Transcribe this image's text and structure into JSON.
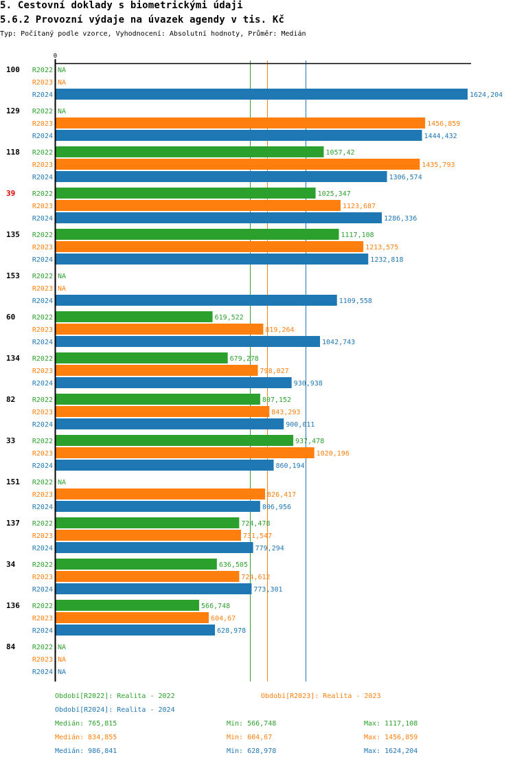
{
  "header": {
    "title": "5. Cestovní doklady s biometrickými údaji",
    "subtitle_title": "5.6.2 Provozní výdaje na úvazek agendy v tis. Kč",
    "meta": "Typ: Počítaný podle vzorce, Vyhodnocení: Absolutní hodnoty, Průměr: Medián"
  },
  "colors": {
    "R2022": "#2ca02c",
    "R2023": "#ff7f0e",
    "R2024": "#1f77b4",
    "highlight": "#dd0000",
    "axis": "#000000"
  },
  "chart_data": {
    "type": "bar",
    "orientation": "horizontal",
    "title": "5.6.2 Provozní výdaje na úvazek agendy v tis. Kč",
    "xlabel": "",
    "ylabel": "",
    "x_tick_labels": [
      "0"
    ],
    "xlim": [
      0,
      1624.204
    ],
    "na_label": "NA",
    "series_names": [
      "R2022",
      "R2023",
      "R2024"
    ],
    "categories": [
      {
        "label": "100",
        "highlight": false,
        "values": {
          "R2022": null,
          "R2023": null,
          "R2024": 1624.204
        },
        "labels": {
          "R2022": "NA",
          "R2023": "NA",
          "R2024": "1624,204"
        }
      },
      {
        "label": "129",
        "highlight": false,
        "values": {
          "R2022": null,
          "R2023": 1456.859,
          "R2024": 1444.432
        },
        "labels": {
          "R2022": "NA",
          "R2023": "1456,859",
          "R2024": "1444,432"
        }
      },
      {
        "label": "118",
        "highlight": false,
        "values": {
          "R2022": 1057.42,
          "R2023": 1435.793,
          "R2024": 1306.574
        },
        "labels": {
          "R2022": "1057,42",
          "R2023": "1435,793",
          "R2024": "1306,574"
        }
      },
      {
        "label": "39",
        "highlight": true,
        "values": {
          "R2022": 1025.347,
          "R2023": 1123.687,
          "R2024": 1286.336
        },
        "labels": {
          "R2022": "1025,347",
          "R2023": "1123,687",
          "R2024": "1286,336"
        }
      },
      {
        "label": "135",
        "highlight": false,
        "values": {
          "R2022": 1117.108,
          "R2023": 1213.575,
          "R2024": 1232.818
        },
        "labels": {
          "R2022": "1117,108",
          "R2023": "1213,575",
          "R2024": "1232,818"
        }
      },
      {
        "label": "153",
        "highlight": false,
        "values": {
          "R2022": null,
          "R2023": null,
          "R2024": 1109.558
        },
        "labels": {
          "R2022": "NA",
          "R2023": "NA",
          "R2024": "1109,558"
        }
      },
      {
        "label": "60",
        "highlight": false,
        "values": {
          "R2022": 619.522,
          "R2023": 819.264,
          "R2024": 1042.743
        },
        "labels": {
          "R2022": "619,522",
          "R2023": "819,264",
          "R2024": "1042,743"
        }
      },
      {
        "label": "134",
        "highlight": false,
        "values": {
          "R2022": 679.278,
          "R2023": 798.027,
          "R2024": 930.938
        },
        "labels": {
          "R2022": "679,278",
          "R2023": "798,027",
          "R2024": "930,938"
        }
      },
      {
        "label": "82",
        "highlight": false,
        "values": {
          "R2022": 807.152,
          "R2023": 843.293,
          "R2024": 900.011
        },
        "labels": {
          "R2022": "807,152",
          "R2023": "843,293",
          "R2024": "900,011"
        }
      },
      {
        "label": "33",
        "highlight": false,
        "values": {
          "R2022": 937.478,
          "R2023": 1020.196,
          "R2024": 860.194
        },
        "labels": {
          "R2022": "937,478",
          "R2023": "1020,196",
          "R2024": "860,194"
        }
      },
      {
        "label": "151",
        "highlight": false,
        "values": {
          "R2022": null,
          "R2023": 826.417,
          "R2024": 806.956
        },
        "labels": {
          "R2022": "NA",
          "R2023": "826,417",
          "R2024": "806,956"
        }
      },
      {
        "label": "137",
        "highlight": false,
        "values": {
          "R2022": 724.478,
          "R2023": 731.547,
          "R2024": 779.294
        },
        "labels": {
          "R2022": "724,478",
          "R2023": "731,547",
          "R2024": "779,294"
        }
      },
      {
        "label": "34",
        "highlight": false,
        "values": {
          "R2022": 636.505,
          "R2023": 724.612,
          "R2024": 773.301
        },
        "labels": {
          "R2022": "636,505",
          "R2023": "724,612",
          "R2024": "773,301"
        }
      },
      {
        "label": "136",
        "highlight": false,
        "values": {
          "R2022": 566.748,
          "R2023": 604.67,
          "R2024": 628.978
        },
        "labels": {
          "R2022": "566,748",
          "R2023": "604,67",
          "R2024": "628,978"
        }
      },
      {
        "label": "84",
        "highlight": false,
        "values": {
          "R2022": null,
          "R2023": null,
          "R2024": null
        },
        "labels": {
          "R2022": "NA",
          "R2023": "NA",
          "R2024": "NA"
        }
      }
    ],
    "median_lines": {
      "R2022": 765.815,
      "R2023": 834.855,
      "R2024": 986.841
    },
    "legend_placement": "bottom"
  },
  "legend": {
    "periods": [
      {
        "key": "R2022",
        "text": "Období[R2022]: Realita - 2022"
      },
      {
        "key": "R2023",
        "text": "Období[R2023]: Realita - 2023"
      },
      {
        "key": "R2024",
        "text": "Období[R2024]: Realita - 2024"
      }
    ],
    "stats": [
      {
        "key": "R2022",
        "median": "Medián: 765,815",
        "min": "Min: 566,748",
        "max": "Max: 1117,108"
      },
      {
        "key": "R2023",
        "median": "Medián: 834,855",
        "min": "Min: 604,67",
        "max": "Max: 1456,859"
      },
      {
        "key": "R2024",
        "median": "Medián: 986,841",
        "min": "Min: 628,978",
        "max": "Max: 1624,204"
      }
    ]
  }
}
